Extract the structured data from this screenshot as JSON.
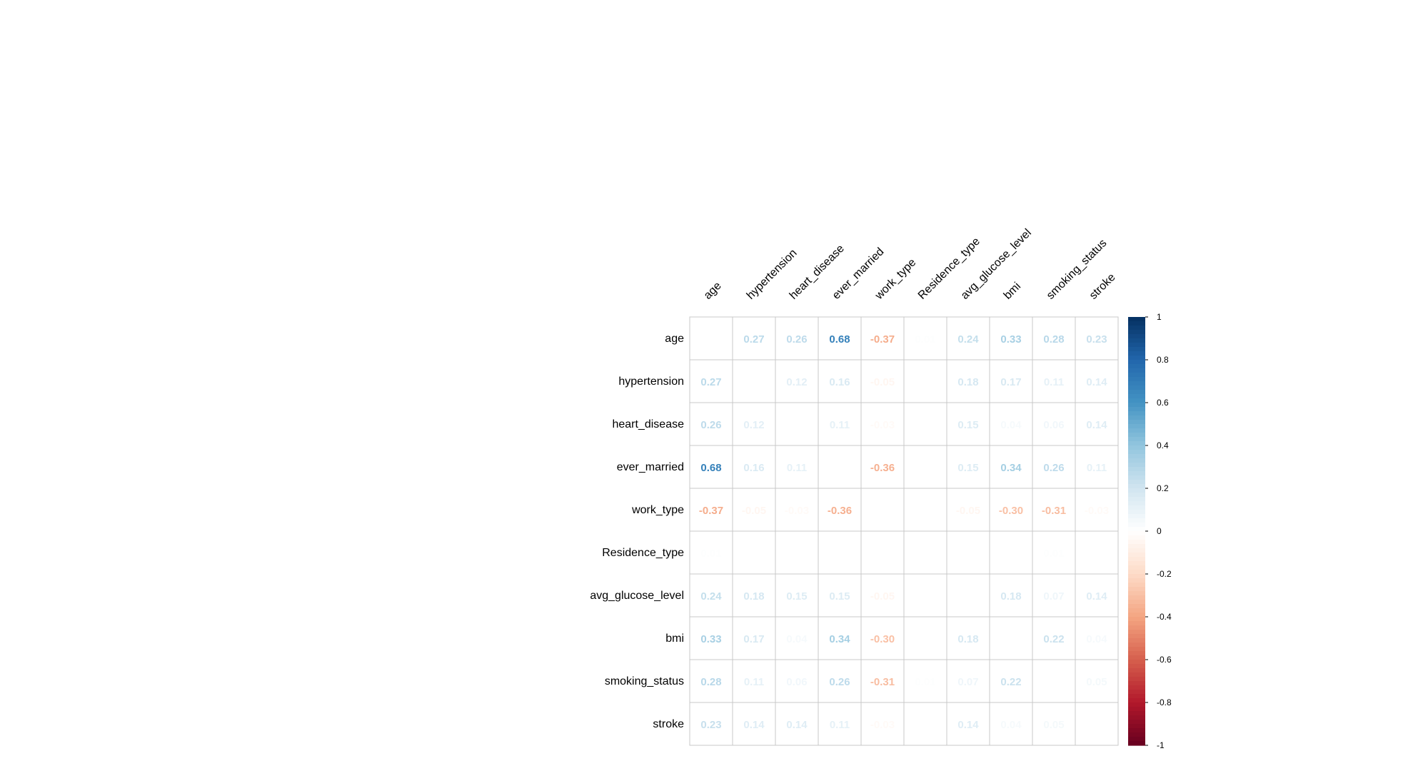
{
  "chart_data": {
    "type": "heatmap",
    "title": "",
    "variables": [
      "age",
      "hypertension",
      "heart_disease",
      "ever_married",
      "work_type",
      "Residence_type",
      "avg_glucose_level",
      "bmi",
      "smoking_status",
      "stroke"
    ],
    "matrix": [
      [
        null,
        0.27,
        0.26,
        0.68,
        -0.37,
        0.01,
        0.24,
        0.33,
        0.28,
        0.23
      ],
      [
        0.27,
        null,
        0.12,
        0.16,
        -0.05,
        0.0,
        0.18,
        0.17,
        0.11,
        0.14
      ],
      [
        0.26,
        0.12,
        null,
        0.11,
        -0.03,
        0.0,
        0.15,
        0.04,
        0.06,
        0.14
      ],
      [
        0.68,
        0.16,
        0.11,
        null,
        -0.36,
        0.0,
        0.15,
        0.34,
        0.26,
        0.11
      ],
      [
        -0.37,
        -0.05,
        -0.03,
        -0.36,
        null,
        0.0,
        -0.05,
        -0.3,
        -0.31,
        -0.03
      ],
      [
        0.01,
        0.0,
        0.0,
        0.0,
        0.0,
        null,
        0.0,
        0.0,
        0.01,
        0.0
      ],
      [
        0.24,
        0.18,
        0.15,
        0.15,
        -0.05,
        0.0,
        null,
        0.18,
        0.07,
        0.14
      ],
      [
        0.33,
        0.17,
        0.04,
        0.34,
        -0.3,
        0.0,
        0.18,
        null,
        0.22,
        0.04
      ],
      [
        0.28,
        0.11,
        0.06,
        0.26,
        -0.31,
        0.01,
        0.07,
        0.22,
        null,
        0.05
      ],
      [
        0.23,
        0.14,
        0.14,
        0.11,
        -0.03,
        0.0,
        0.14,
        0.04,
        0.05,
        null
      ]
    ],
    "colorbar": {
      "range": [
        -1,
        1
      ],
      "ticks": [
        "1",
        "0.8",
        "0.6",
        "0.4",
        "0.2",
        "0",
        "-0.2",
        "-0.4",
        "-0.6",
        "-0.8",
        "-1"
      ],
      "tick_values": [
        1,
        0.8,
        0.6,
        0.4,
        0.2,
        0,
        -0.2,
        -0.4,
        -0.6,
        -0.8,
        -1
      ]
    },
    "colors": {
      "negative_end": "#67001F",
      "neutral": "#FFFFFF",
      "positive_end": "#053061",
      "grid": "#C8C8C8",
      "label": "#000000"
    },
    "legend_position": "right",
    "grid": true
  }
}
